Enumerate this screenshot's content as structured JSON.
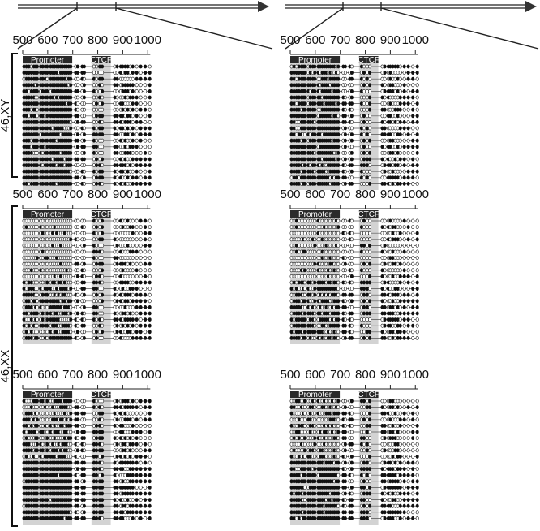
{
  "groups": [
    {
      "label": "46,XY",
      "rows": [
        0
      ]
    },
    {
      "label": "46,XX",
      "rows": [
        1,
        2
      ]
    }
  ],
  "axis_ticks": [
    "500",
    "600",
    "700",
    "800",
    "900",
    "1000"
  ],
  "regions": {
    "promoter": "Promoter",
    "ctcf": "CTCF"
  },
  "tick_values": [
    500,
    600,
    700,
    800,
    900,
    1000
  ],
  "region_ranges": {
    "promoter": [
      500,
      698
    ],
    "ctcf": [
      775,
      852
    ]
  },
  "cpg_positions": [
    505,
    515,
    525,
    535,
    545,
    552,
    558,
    572,
    580,
    590,
    598,
    612,
    620,
    628,
    636,
    644,
    652,
    660,
    668,
    676,
    684,
    692,
    712,
    720,
    738,
    746,
    785,
    795,
    808,
    818,
    868,
    878,
    892,
    900,
    910,
    920,
    930,
    940,
    956,
    972,
    990,
    1008
  ],
  "panels": [
    {
      "methylation": [
        0.9,
        0.45,
        0.55
      ]
    },
    {
      "methylation": [
        0.85,
        0.45,
        0.5
      ]
    },
    {
      "methylation": [
        0.1,
        0.3,
        0.3
      ]
    },
    {
      "methylation": [
        0.12,
        0.3,
        0.3
      ]
    },
    {
      "methylation": [
        0.55,
        0.55,
        0.5
      ]
    },
    {
      "methylation": [
        0.35,
        0.45,
        0.4
      ]
    }
  ],
  "colors": {
    "filled": "#111111",
    "open": "#ffffff",
    "region_shade": "#d3d3d3",
    "label_bar": "#2a2a2a",
    "line": "#555555"
  }
}
